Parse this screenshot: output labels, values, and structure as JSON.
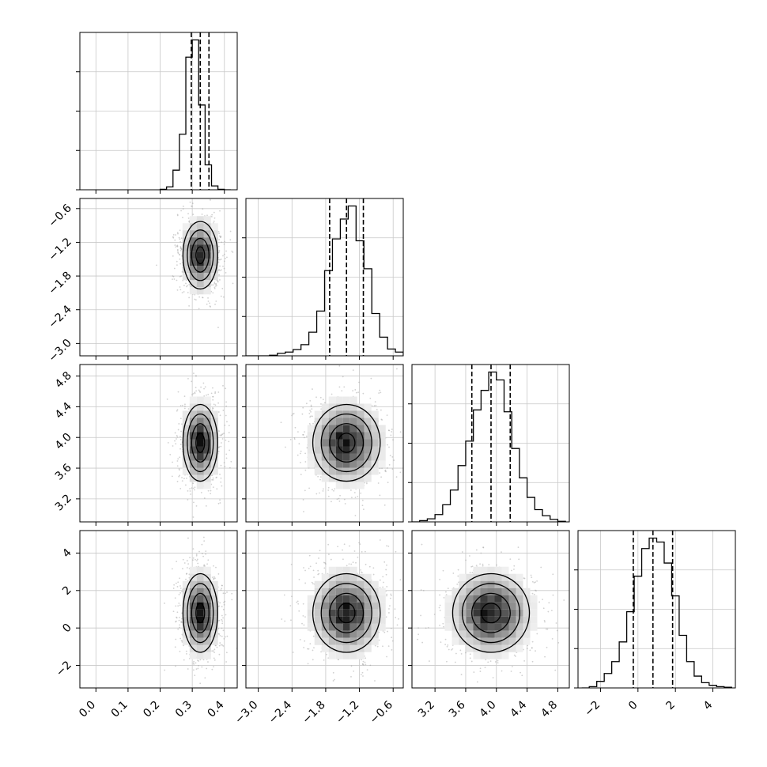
{
  "chart_data": {
    "type": "corner",
    "parameters": [
      {
        "xlim": [
          -0.05,
          0.44
        ],
        "ticks": [
          0.0,
          0.1,
          0.2,
          0.3,
          0.4
        ],
        "tick_labels": [
          "0.0",
          "0.1",
          "0.2",
          "0.3",
          "0.4"
        ],
        "median": 0.325,
        "sigma": 0.027,
        "quantiles": [
          0.297,
          0.325,
          0.352
        ],
        "hist": {
          "edges": [
            0.2,
            0.22,
            0.24,
            0.26,
            0.28,
            0.3,
            0.32,
            0.34,
            0.36,
            0.38,
            0.4,
            0.42
          ],
          "counts": [
            1,
            6,
            41,
            116,
            277,
            313,
            177,
            52,
            8,
            1,
            0
          ]
        }
      },
      {
        "xlim": [
          -3.22,
          -0.42
        ],
        "ticks": [
          -3.0,
          -2.4,
          -1.8,
          -1.2,
          -0.6
        ],
        "tick_labels": [
          "−3.0",
          "−2.4",
          "−1.8",
          "−1.2",
          "−0.6"
        ],
        "median": -1.43,
        "sigma": 0.3,
        "quantiles": [
          -1.73,
          -1.43,
          -1.13
        ],
        "hist": {
          "edges": [
            -3.22,
            -3.08,
            -2.94,
            -2.8,
            -2.66,
            -2.52,
            -2.38,
            -2.24,
            -2.1,
            -1.96,
            -1.82,
            -1.68,
            -1.54,
            -1.4,
            -1.26,
            -1.12,
            -0.98,
            -0.84,
            -0.7,
            -0.56,
            -0.42
          ],
          "counts": [
            0,
            0,
            0,
            1,
            4,
            6,
            10,
            18,
            38,
            72,
            137,
            188,
            220,
            241,
            185,
            140,
            68,
            30,
            11,
            6,
            1
          ]
        }
      },
      {
        "xlim": [
          2.9,
          4.95
        ],
        "ticks": [
          3.2,
          3.6,
          4.0,
          4.4,
          4.8
        ],
        "tick_labels": [
          "3.2",
          "3.6",
          "4.0",
          "4.4",
          "4.8"
        ],
        "median": 3.93,
        "sigma": 0.25,
        "quantiles": [
          3.68,
          3.93,
          4.18
        ],
        "hist": {
          "edges": [
            2.9,
            3.0,
            3.1,
            3.2,
            3.3,
            3.4,
            3.5,
            3.6,
            3.7,
            3.8,
            3.9,
            4.0,
            4.1,
            4.2,
            4.3,
            4.4,
            4.5,
            4.6,
            4.7,
            4.8,
            4.9
          ],
          "counts": [
            0,
            2,
            5,
            12,
            28,
            52,
            92,
            132,
            183,
            215,
            245,
            232,
            180,
            120,
            72,
            40,
            20,
            10,
            4,
            1
          ]
        }
      },
      {
        "xlim": [
          -3.2,
          5.2
        ],
        "ticks": [
          -2,
          0,
          2,
          4
        ],
        "tick_labels": [
          "−2",
          "0",
          "2",
          "4"
        ],
        "median": 0.8,
        "sigma": 1.05,
        "quantiles": [
          -0.25,
          0.8,
          1.85
        ],
        "hist": {
          "edges": [
            -3.0,
            -2.6,
            -2.2,
            -1.8,
            -1.4,
            -1.0,
            -0.6,
            -0.2,
            0.2,
            0.6,
            1.0,
            1.4,
            1.8,
            2.2,
            2.6,
            3.0,
            3.4,
            3.8,
            4.2,
            4.6,
            5.0
          ],
          "counts": [
            0,
            2,
            10,
            22,
            40,
            70,
            116,
            170,
            212,
            228,
            222,
            190,
            140,
            80,
            40,
            18,
            8,
            4,
            2,
            1
          ]
        }
      }
    ],
    "grid": true
  }
}
